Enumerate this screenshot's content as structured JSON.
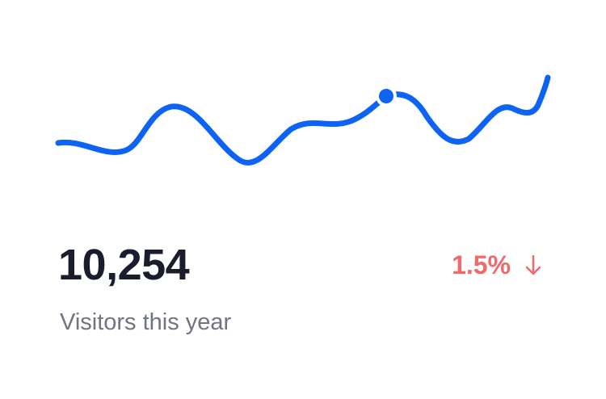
{
  "card": {
    "value": "10,254",
    "label": "Visitors this year",
    "change": {
      "text": "1.5%",
      "direction": "down",
      "icon": "arrow-down-icon",
      "color": "#f06a6a"
    }
  },
  "sparkline": {
    "line_color": "#0d63f3",
    "marker": "highlighted-point"
  }
}
